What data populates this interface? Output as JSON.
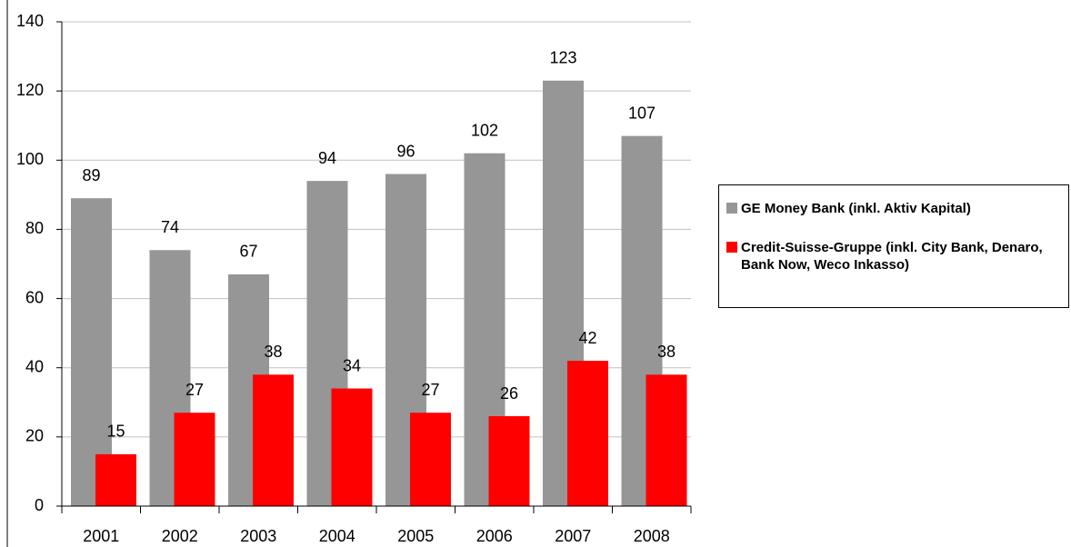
{
  "chart_data": {
    "type": "bar",
    "categories": [
      "2001",
      "2002",
      "2003",
      "2004",
      "2005",
      "2006",
      "2007",
      "2008"
    ],
    "series": [
      {
        "name": "GE Money Bank (inkl. Aktiv Kapital)",
        "color": "#969696",
        "values": [
          89,
          74,
          67,
          94,
          96,
          102,
          123,
          107
        ]
      },
      {
        "name": "Credit-Suisse-Gruppe (inkl. City Bank, Denaro, Bank Now, Weco Inkasso)",
        "color": "#ff0000",
        "values": [
          15,
          27,
          38,
          34,
          27,
          26,
          42,
          38
        ]
      }
    ],
    "ylim": [
      0,
      140
    ],
    "yticks": [
      0,
      20,
      40,
      60,
      80,
      100,
      120,
      140
    ],
    "grid": true,
    "legend": "right"
  }
}
